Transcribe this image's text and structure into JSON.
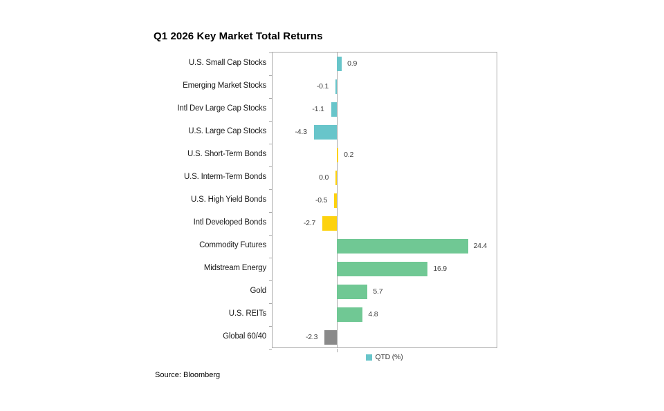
{
  "title": "Q1 2026 Key Market Total Returns",
  "source": "Source: Bloomberg",
  "legend": {
    "label": "QTD (%)",
    "swatch_color": "#68c5ca"
  },
  "colors": {
    "stocks": "#68c5ca",
    "bonds": "#fdd20e",
    "real_assets": "#70c894",
    "blend": "#8a8a8a",
    "axis": "#a8a8a8",
    "value_text": "#3f3f3f"
  },
  "chart_data": {
    "type": "bar",
    "orientation": "horizontal",
    "title": "Q1 2026 Key Market Total Returns",
    "xlabel": "QTD (%)",
    "ylabel": "",
    "xlim": [
      -12,
      30
    ],
    "grid": false,
    "legend_position": "bottom-center",
    "categories": [
      "U.S. Small Cap Stocks",
      "Emerging Market Stocks",
      "Intl Dev Large Cap Stocks",
      "U.S. Large Cap Stocks",
      "U.S. Short-Term Bonds",
      "U.S. Interm-Term Bonds",
      "U.S. High Yield Bonds",
      "Intl Developed Bonds",
      "Commodity Futures",
      "Midstream Energy",
      "Gold",
      "U.S. REITs",
      "Global 60/40"
    ],
    "values": [
      0.9,
      -0.1,
      -1.1,
      -4.3,
      0.2,
      0.0,
      -0.5,
      -2.7,
      24.4,
      16.9,
      5.7,
      4.8,
      -2.3
    ],
    "value_labels": [
      "0.9",
      "-0.1",
      "-1.1",
      "-4.3",
      "0.2",
      "0.0",
      "-0.5",
      "-2.7",
      "24.4",
      "16.9",
      "5.7",
      "4.8",
      "-2.3"
    ],
    "bar_colors": [
      "#68c5ca",
      "#68c5ca",
      "#68c5ca",
      "#68c5ca",
      "#fdd20e",
      "#fdd20e",
      "#fdd20e",
      "#fdd20e",
      "#70c894",
      "#70c894",
      "#70c894",
      "#70c894",
      "#8a8a8a"
    ]
  }
}
